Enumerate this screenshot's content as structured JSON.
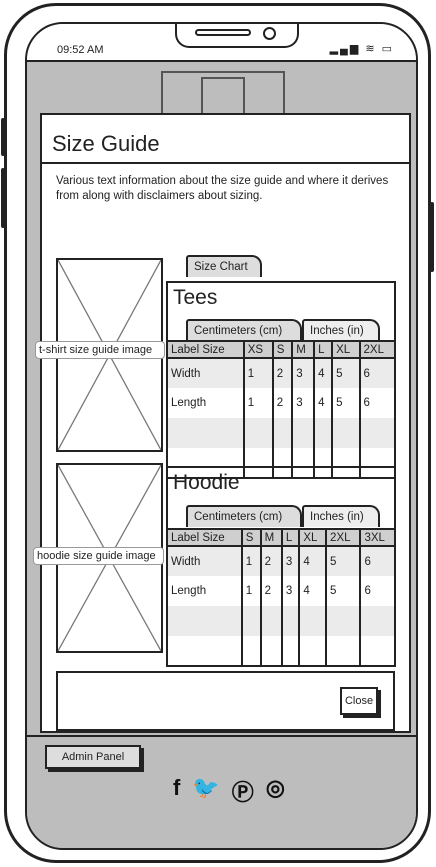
{
  "statusbar": {
    "time": "09:52 AM",
    "icons": "▂▄▆ ≋ ▭"
  },
  "modal": {
    "title": "Size Guide",
    "description": "Various text information about the size guide and where it derives from along with disclaimers about sizing.",
    "main_tab": "Size Chart",
    "close_label": "Close"
  },
  "tees": {
    "image_caption": "t-shirt size guide image",
    "title": "Tees",
    "tabs": [
      "Centimeters (cm)",
      "Inches (in)"
    ],
    "headers": [
      "Label Size",
      "XS",
      "S",
      "M",
      "L",
      "XL",
      "2XL"
    ],
    "rows": [
      [
        "Width",
        "1",
        "2",
        "3",
        "4",
        "5",
        "6"
      ],
      [
        "Length",
        "1",
        "2",
        "3",
        "4",
        "5",
        "6"
      ],
      [
        "",
        "",
        "",
        "",
        "",
        "",
        ""
      ],
      [
        "",
        "",
        "",
        "",
        "",
        "",
        ""
      ]
    ]
  },
  "hoodie": {
    "image_caption": "hoodie size guide image",
    "title": "Hoodie",
    "tabs": [
      "Centimeters (cm)",
      "Inches (in)"
    ],
    "headers": [
      "Label Size",
      "S",
      "M",
      "L",
      "XL",
      "2XL",
      "3XL"
    ],
    "rows": [
      [
        "Width",
        "1",
        "2",
        "3",
        "4",
        "5",
        "6"
      ],
      [
        "Length",
        "1",
        "2",
        "3",
        "4",
        "5",
        "6"
      ],
      [
        "",
        "",
        "",
        "",
        "",
        "",
        ""
      ],
      [
        "",
        "",
        "",
        "",
        "",
        "",
        ""
      ]
    ]
  },
  "footer": {
    "admin_label": "Admin Panel",
    "social_icons": [
      "facebook-icon",
      "twitter-icon",
      "pinterest-icon",
      "instagram-icon"
    ]
  }
}
